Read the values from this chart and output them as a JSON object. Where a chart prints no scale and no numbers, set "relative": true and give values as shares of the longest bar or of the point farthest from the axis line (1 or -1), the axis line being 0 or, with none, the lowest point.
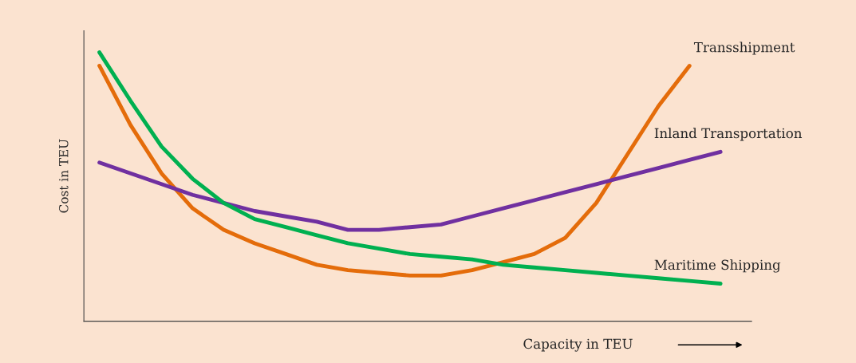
{
  "chart_data": {
    "type": "line",
    "relative": true,
    "xlabel": "Capacity in TEU",
    "ylabel": "Cost in TEU",
    "legend": false,
    "grid": false,
    "marker": "none",
    "line_style": "solid",
    "categories": [
      null,
      null,
      null,
      null,
      null,
      null,
      null,
      null,
      null,
      null,
      null,
      null,
      null,
      null,
      null,
      null,
      null,
      null,
      null,
      null,
      null
    ],
    "series": [
      {
        "name": "Transshipment",
        "color": "#e46c0a",
        "values": [
          0.95,
          0.73,
          0.55,
          0.42,
          0.34,
          0.29,
          0.25,
          0.21,
          0.19,
          0.18,
          0.17,
          0.17,
          0.19,
          0.22,
          0.25,
          0.31,
          0.44,
          0.62,
          0.8,
          0.95,
          null
        ]
      },
      {
        "name": "Inland Transportation",
        "color": "#7030a0",
        "values": [
          0.59,
          0.55,
          0.51,
          0.47,
          0.44,
          0.41,
          0.39,
          0.37,
          0.34,
          0.34,
          0.35,
          0.36,
          0.39,
          0.42,
          0.45,
          0.48,
          0.51,
          0.54,
          0.57,
          0.6,
          0.63
        ]
      },
      {
        "name": "Maritime Shipping",
        "color": "#00b050",
        "values": [
          1,
          0.82,
          0.65,
          0.53,
          0.44,
          0.38,
          0.35,
          0.32,
          0.29,
          0.27,
          0.25,
          0.24,
          0.23,
          0.21,
          0.2,
          0.19,
          0.18,
          0.17,
          0.16,
          0.15,
          0.14
        ]
      }
    ]
  }
}
